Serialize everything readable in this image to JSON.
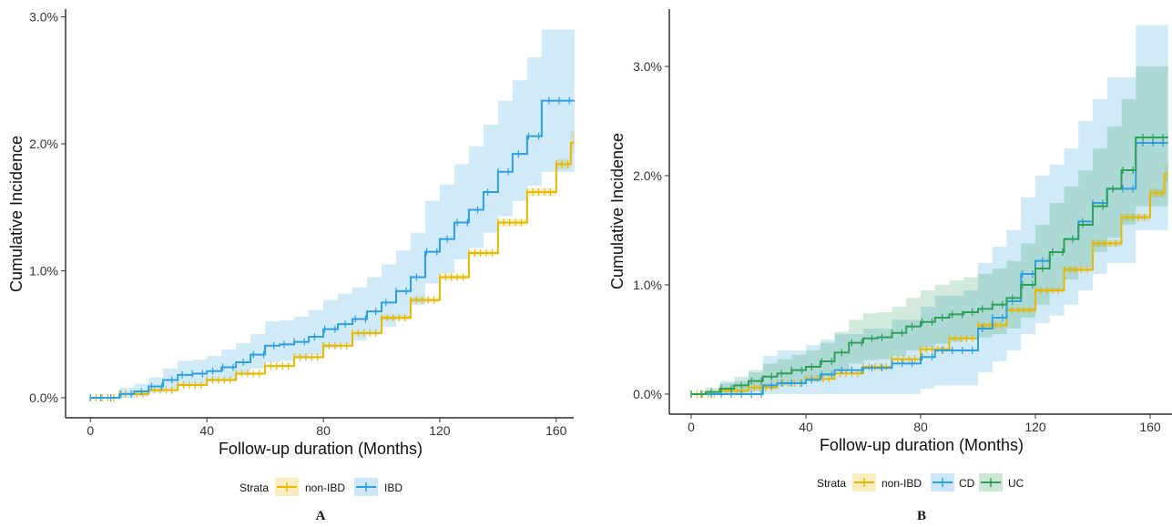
{
  "colors": {
    "non-IBD": "#E7B800",
    "IBD": "#2E9FDF",
    "CD": "#2E9FDF",
    "UC": "#2EA05A"
  },
  "chart_data": [
    {
      "panel": "A",
      "type": "line",
      "xlabel": "Follow-up duration (Months)",
      "ylabel": "Cumulative Incidence",
      "xlim": [
        -7,
        168
      ],
      "ylim": [
        -0.15,
        3.05
      ],
      "xticks": [
        0,
        40,
        80,
        120,
        160
      ],
      "xtick_labels": [
        "0",
        "40",
        "80",
        "120",
        "160"
      ],
      "yticks": [
        0,
        1,
        2,
        3
      ],
      "ytick_labels": [
        "0.0%",
        "1.0%",
        "2.0%",
        "3.0%"
      ],
      "grid": false,
      "legend": {
        "title": "Strata",
        "position": "bottom",
        "entries": [
          "non-IBD",
          "IBD"
        ]
      },
      "series": [
        {
          "name": "non-IBD",
          "color_key": "non-IBD",
          "x": [
            0,
            10,
            20,
            30,
            40,
            50,
            60,
            70,
            80,
            90,
            100,
            110,
            120,
            130,
            140,
            150,
            160,
            165
          ],
          "y": [
            0,
            0.03,
            0.06,
            0.1,
            0.14,
            0.19,
            0.25,
            0.32,
            0.41,
            0.51,
            0.63,
            0.77,
            0.95,
            1.14,
            1.38,
            1.62,
            1.84,
            2.01
          ],
          "ci_low": [
            0,
            0.02,
            0.05,
            0.09,
            0.13,
            0.18,
            0.24,
            0.31,
            0.4,
            0.5,
            0.61,
            0.75,
            0.93,
            1.12,
            1.35,
            1.59,
            1.8,
            1.93
          ],
          "ci_high": [
            0,
            0.04,
            0.07,
            0.11,
            0.15,
            0.2,
            0.26,
            0.33,
            0.42,
            0.52,
            0.65,
            0.79,
            0.97,
            1.16,
            1.41,
            1.65,
            1.88,
            2.1
          ]
        },
        {
          "name": "IBD",
          "color_key": "IBD",
          "x": [
            0,
            10,
            15,
            20,
            25,
            30,
            35,
            40,
            45,
            50,
            55,
            60,
            65,
            70,
            75,
            80,
            85,
            90,
            95,
            100,
            105,
            110,
            115,
            120,
            125,
            130,
            135,
            140,
            145,
            150,
            155,
            160,
            165
          ],
          "y": [
            0,
            0.03,
            0.05,
            0.09,
            0.14,
            0.18,
            0.19,
            0.21,
            0.24,
            0.28,
            0.34,
            0.41,
            0.42,
            0.44,
            0.48,
            0.54,
            0.58,
            0.62,
            0.68,
            0.75,
            0.84,
            0.95,
            1.15,
            1.25,
            1.38,
            1.48,
            1.62,
            1.78,
            1.92,
            2.06,
            2.34,
            2.34,
            2.34
          ],
          "ci_low": [
            0,
            0,
            0.01,
            0.04,
            0.07,
            0.1,
            0.11,
            0.13,
            0.15,
            0.18,
            0.23,
            0.28,
            0.29,
            0.31,
            0.34,
            0.39,
            0.42,
            0.45,
            0.5,
            0.56,
            0.64,
            0.73,
            0.9,
            0.98,
            1.09,
            1.18,
            1.3,
            1.43,
            1.55,
            1.67,
            1.78,
            1.78,
            1.78
          ],
          "ci_high": [
            0,
            0.08,
            0.11,
            0.16,
            0.23,
            0.29,
            0.3,
            0.33,
            0.38,
            0.43,
            0.5,
            0.6,
            0.61,
            0.64,
            0.69,
            0.77,
            0.82,
            0.87,
            0.95,
            1.05,
            1.16,
            1.3,
            1.55,
            1.68,
            1.84,
            1.98,
            2.15,
            2.34,
            2.5,
            2.68,
            2.9,
            2.9,
            2.9
          ]
        }
      ]
    },
    {
      "panel": "B",
      "type": "line",
      "xlabel": "Follow-up duration (Months)",
      "ylabel": "Cumulative Incidence",
      "xlim": [
        -7,
        168
      ],
      "ylim": [
        -0.15,
        3.55
      ],
      "xticks": [
        0,
        40,
        80,
        120,
        160
      ],
      "xtick_labels": [
        "0",
        "40",
        "80",
        "120",
        "160"
      ],
      "yticks": [
        0,
        1,
        2,
        3
      ],
      "ytick_labels": [
        "0.0%",
        "1.0%",
        "2.0%",
        "3.0%"
      ],
      "grid": false,
      "legend": {
        "title": "Strata",
        "position": "bottom",
        "entries": [
          "non-IBD",
          "CD",
          "UC"
        ]
      },
      "series": [
        {
          "name": "non-IBD",
          "color_key": "non-IBD",
          "x": [
            0,
            10,
            20,
            30,
            40,
            50,
            60,
            70,
            80,
            90,
            100,
            110,
            120,
            130,
            140,
            150,
            160,
            165
          ],
          "y": [
            0,
            0.03,
            0.06,
            0.1,
            0.14,
            0.19,
            0.25,
            0.32,
            0.41,
            0.51,
            0.63,
            0.77,
            0.95,
            1.14,
            1.38,
            1.62,
            1.84,
            2.01
          ],
          "ci_low": [
            0,
            0.02,
            0.05,
            0.09,
            0.13,
            0.18,
            0.24,
            0.31,
            0.4,
            0.5,
            0.61,
            0.75,
            0.93,
            1.12,
            1.35,
            1.59,
            1.8,
            1.93
          ],
          "ci_high": [
            0,
            0.04,
            0.07,
            0.11,
            0.15,
            0.2,
            0.26,
            0.33,
            0.42,
            0.52,
            0.65,
            0.79,
            0.97,
            1.16,
            1.41,
            1.65,
            1.88,
            2.1
          ]
        },
        {
          "name": "CD",
          "color_key": "CD",
          "x": [
            0,
            10,
            20,
            25,
            30,
            40,
            45,
            50,
            60,
            70,
            80,
            85,
            95,
            100,
            105,
            110,
            115,
            120,
            125,
            130,
            135,
            140,
            145,
            150,
            155,
            160,
            165
          ],
          "y": [
            0,
            0,
            0,
            0.08,
            0.1,
            0.13,
            0.18,
            0.22,
            0.24,
            0.28,
            0.34,
            0.4,
            0.4,
            0.6,
            0.7,
            0.85,
            1.1,
            1.22,
            1.3,
            1.42,
            1.58,
            1.75,
            1.88,
            1.88,
            2.3,
            2.3,
            2.3
          ],
          "ci_low": [
            0,
            0,
            0,
            0,
            0,
            0,
            0,
            0,
            0,
            0,
            0.05,
            0.08,
            0.08,
            0.2,
            0.3,
            0.4,
            0.55,
            0.65,
            0.72,
            0.82,
            0.95,
            1.1,
            1.2,
            1.2,
            1.5,
            1.5,
            1.5
          ],
          "ci_high": [
            0,
            0.12,
            0.2,
            0.35,
            0.4,
            0.45,
            0.5,
            0.55,
            0.6,
            0.68,
            0.8,
            0.9,
            0.95,
            1.2,
            1.35,
            1.5,
            1.8,
            2.0,
            2.1,
            2.25,
            2.5,
            2.7,
            2.9,
            2.9,
            3.38,
            3.38,
            3.38
          ]
        },
        {
          "name": "UC",
          "color_key": "UC",
          "x": [
            0,
            5,
            10,
            15,
            20,
            25,
            30,
            35,
            40,
            45,
            50,
            55,
            60,
            65,
            70,
            75,
            80,
            85,
            90,
            95,
            100,
            105,
            110,
            115,
            120,
            125,
            130,
            135,
            140,
            145,
            150,
            155,
            160,
            165
          ],
          "y": [
            0,
            0.02,
            0.05,
            0.08,
            0.12,
            0.16,
            0.19,
            0.22,
            0.25,
            0.3,
            0.38,
            0.47,
            0.51,
            0.52,
            0.56,
            0.62,
            0.66,
            0.7,
            0.73,
            0.75,
            0.78,
            0.82,
            0.88,
            1.0,
            1.15,
            1.3,
            1.42,
            1.55,
            1.72,
            1.88,
            2.05,
            2.35,
            2.35,
            2.35
          ],
          "ci_low": [
            0,
            0,
            0,
            0.01,
            0.03,
            0.06,
            0.08,
            0.1,
            0.12,
            0.16,
            0.21,
            0.28,
            0.31,
            0.32,
            0.35,
            0.4,
            0.43,
            0.46,
            0.48,
            0.5,
            0.52,
            0.55,
            0.6,
            0.7,
            0.82,
            0.95,
            1.05,
            1.16,
            1.3,
            1.43,
            1.55,
            1.72,
            1.72,
            1.72
          ],
          "ci_high": [
            0,
            0.06,
            0.1,
            0.16,
            0.22,
            0.28,
            0.32,
            0.36,
            0.4,
            0.47,
            0.57,
            0.68,
            0.74,
            0.75,
            0.8,
            0.88,
            0.95,
            1.0,
            1.04,
            1.07,
            1.1,
            1.15,
            1.22,
            1.38,
            1.55,
            1.75,
            1.9,
            2.05,
            2.25,
            2.45,
            2.7,
            3.0,
            3.0,
            3.0
          ]
        }
      ]
    }
  ]
}
